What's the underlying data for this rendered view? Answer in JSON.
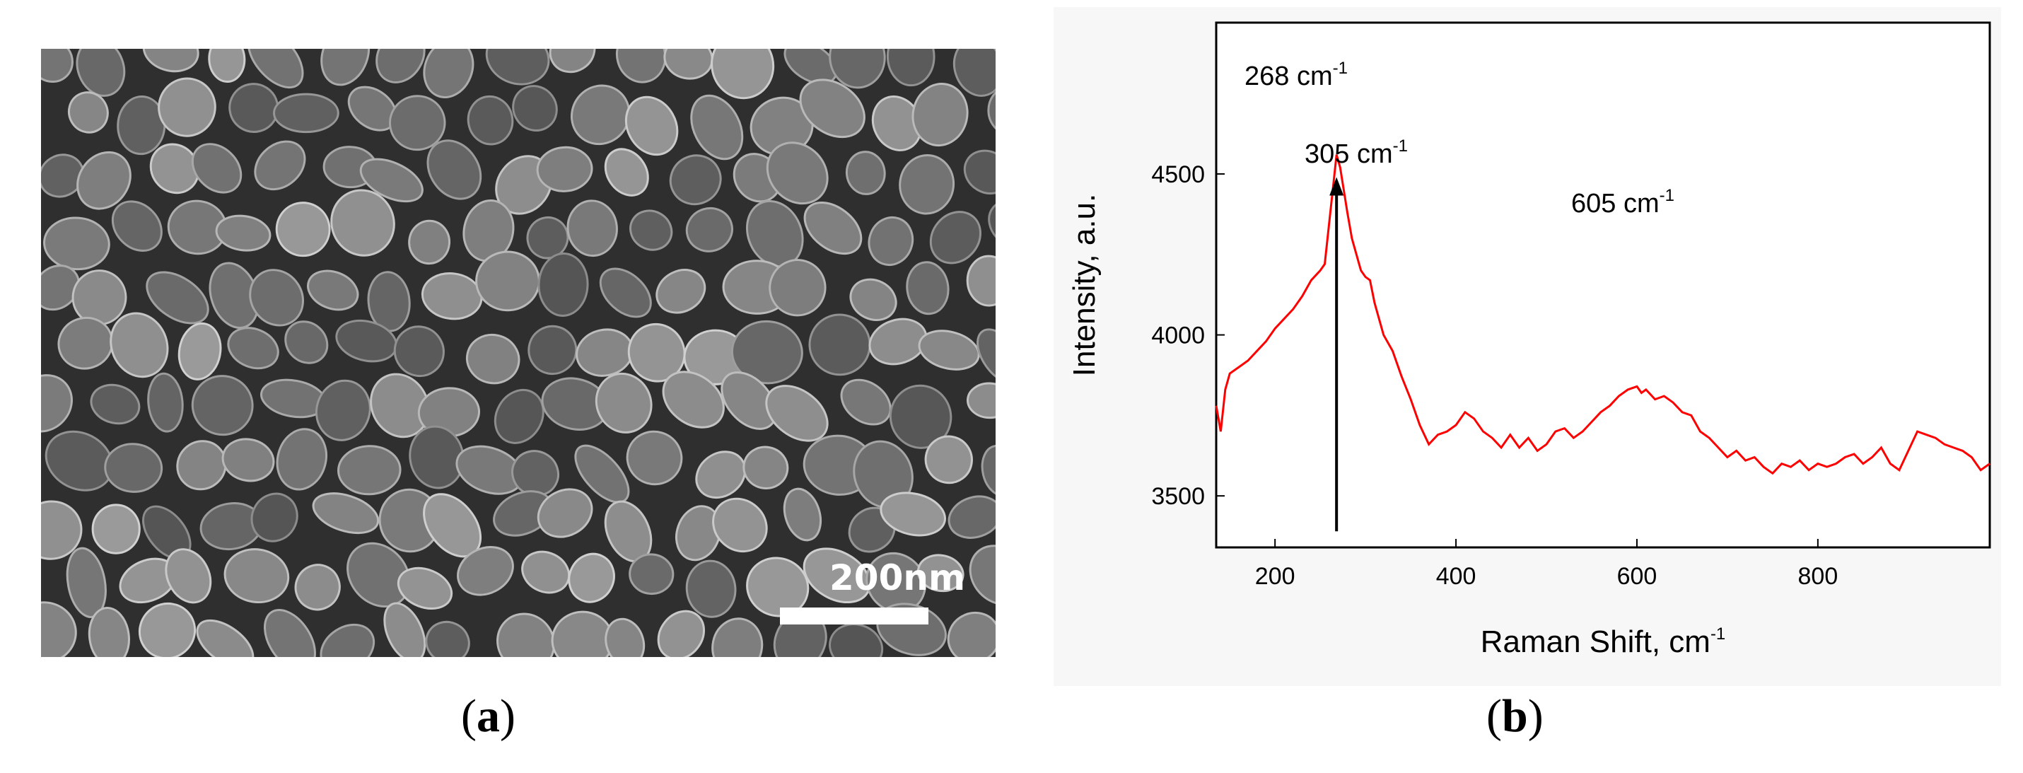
{
  "panel_a": {
    "label_open": "(",
    "label_letter": "a",
    "label_close": ")",
    "scale_bar_text": "200nm"
  },
  "panel_b": {
    "label_open": "(",
    "label_letter": "b",
    "label_close": ")"
  },
  "chart_data": {
    "type": "line",
    "xlabel": "Raman Shift, cm",
    "xlabel_sup": "-1",
    "ylabel": "Intensity, a.u.",
    "xlim": [
      135,
      990
    ],
    "ylim": [
      3340,
      4970
    ],
    "xticks": [
      200,
      400,
      600,
      800
    ],
    "yticks": [
      3500,
      4000,
      4500
    ],
    "grid": false,
    "color": "#ff0000",
    "series": [
      {
        "x": [
          135,
          140,
          145,
          150,
          160,
          170,
          180,
          190,
          200,
          210,
          220,
          230,
          240,
          250,
          255,
          260,
          265,
          268,
          272,
          276,
          280,
          285,
          290,
          295,
          300,
          305,
          310,
          315,
          320,
          330,
          340,
          350,
          360,
          370,
          380,
          390,
          400,
          410,
          420,
          430,
          440,
          450,
          460,
          470,
          480,
          490,
          500,
          510,
          520,
          530,
          540,
          550,
          560,
          570,
          580,
          590,
          600,
          605,
          610,
          620,
          630,
          640,
          650,
          660,
          670,
          680,
          690,
          700,
          710,
          720,
          730,
          740,
          750,
          760,
          770,
          780,
          790,
          800,
          810,
          820,
          830,
          840,
          850,
          860,
          870,
          880,
          890,
          900,
          910,
          920,
          930,
          940,
          950,
          960,
          970,
          980,
          990
        ],
        "y": [
          3780,
          3700,
          3830,
          3880,
          3900,
          3920,
          3950,
          3980,
          4020,
          4050,
          4080,
          4120,
          4170,
          4200,
          4220,
          4350,
          4480,
          4560,
          4520,
          4450,
          4380,
          4300,
          4250,
          4200,
          4180,
          4170,
          4100,
          4050,
          4000,
          3950,
          3870,
          3800,
          3720,
          3660,
          3690,
          3700,
          3720,
          3760,
          3740,
          3700,
          3680,
          3650,
          3690,
          3650,
          3680,
          3640,
          3660,
          3700,
          3710,
          3680,
          3700,
          3730,
          3760,
          3780,
          3810,
          3830,
          3840,
          3820,
          3830,
          3800,
          3810,
          3790,
          3760,
          3750,
          3700,
          3680,
          3650,
          3620,
          3640,
          3610,
          3620,
          3590,
          3570,
          3600,
          3590,
          3610,
          3580,
          3600,
          3590,
          3600,
          3620,
          3630,
          3600,
          3620,
          3650,
          3600,
          3580,
          3640,
          3700,
          3690,
          3680,
          3660,
          3650,
          3640,
          3620,
          3580,
          3600
        ]
      }
    ],
    "annotations": [
      {
        "text": "268 cm",
        "sup": "-1",
        "x": 268
      },
      {
        "text": "305 cm",
        "sup": "-1",
        "x": 305
      },
      {
        "text": "605 cm",
        "sup": "-1",
        "x": 605
      }
    ],
    "arrow": {
      "x": 268,
      "y_from": 3390,
      "y_to": 4490
    }
  }
}
